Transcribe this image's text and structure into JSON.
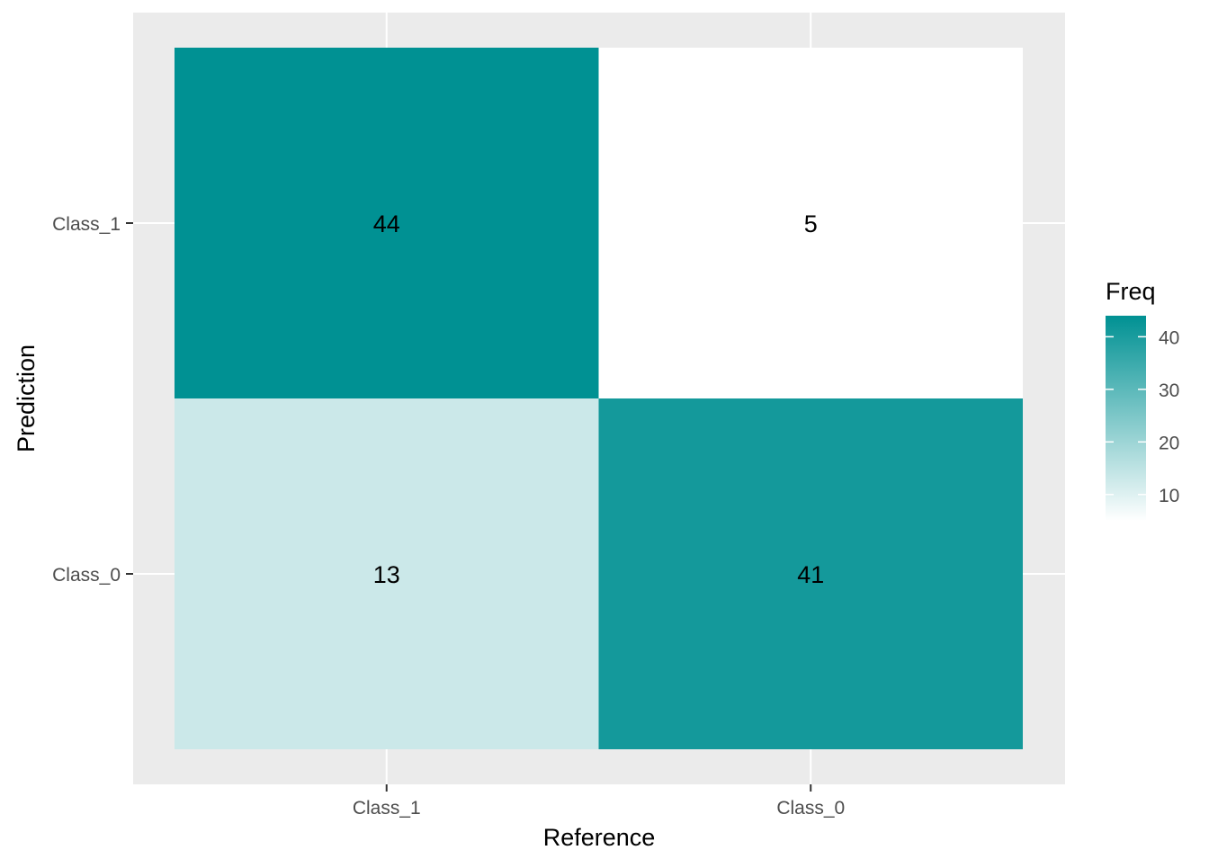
{
  "chart_data": {
    "type": "heatmap",
    "title": "",
    "xlabel": "Reference",
    "ylabel": "Prediction",
    "x_categories": [
      "Class_1",
      "Class_0"
    ],
    "y_categories": [
      "Class_1",
      "Class_0"
    ],
    "cells": [
      {
        "reference": "Class_1",
        "prediction": "Class_1",
        "freq": 44
      },
      {
        "reference": "Class_0",
        "prediction": "Class_1",
        "freq": 5
      },
      {
        "reference": "Class_1",
        "prediction": "Class_0",
        "freq": 13
      },
      {
        "reference": "Class_0",
        "prediction": "Class_0",
        "freq": 41
      }
    ],
    "legend": {
      "title": "Freq",
      "ticks": [
        10,
        20,
        30,
        40
      ],
      "range": [
        5,
        44
      ],
      "low_color": "#ffffff",
      "high_color": "#009193",
      "placement": "right"
    },
    "grid": true,
    "panel_background": "#ebebeb"
  }
}
